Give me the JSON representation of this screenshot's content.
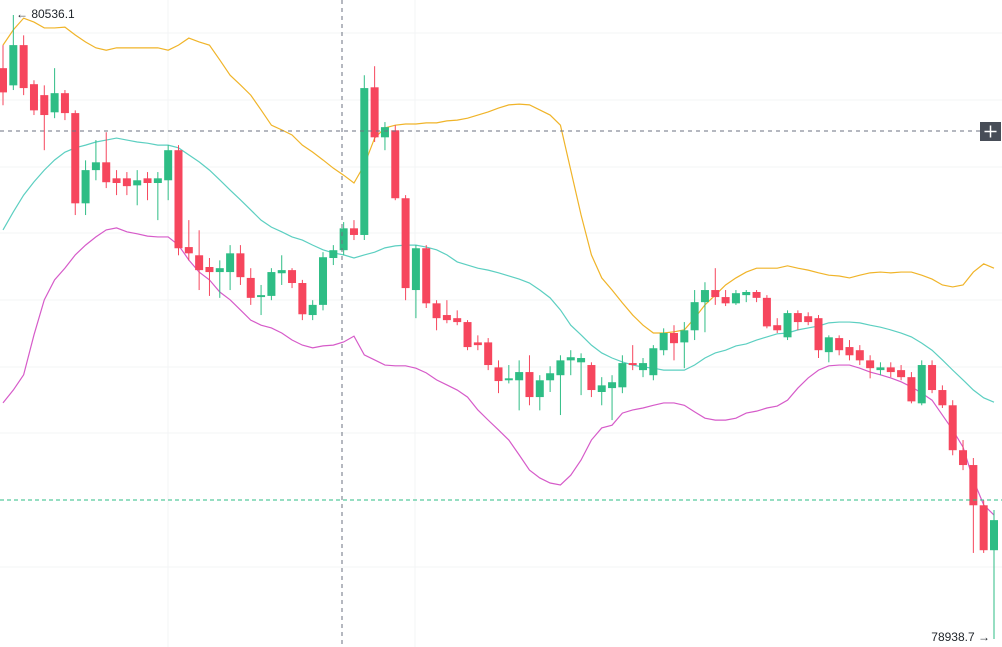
{
  "chart_data": {
    "type": "candlestick",
    "max_label": "← 80536.1",
    "min_label": "78938.7 →",
    "ylim": [
      78918.2,
      80574.5
    ],
    "up_color": "#2ebd85",
    "down_color": "#f6465d",
    "open": [
      80400,
      80356,
      80459,
      80359,
      80331,
      80287,
      80336,
      80285,
      80054,
      80139,
      80159,
      80118,
      80118,
      80100,
      80118,
      80106,
      80113,
      80190,
      79942,
      79921,
      79891,
      79878,
      79878,
      79926,
      79863,
      79814,
      79817,
      79875,
      79883,
      79850,
      79768,
      79794,
      79914,
      79934,
      79990,
      79973,
      80351,
      80223,
      80241,
      80067,
      79832,
      79939,
      79798,
      79768,
      79760,
      79750,
      79698,
      79698,
      79634,
      79601,
      79601,
      79622,
      79558,
      79601,
      79614,
      79652,
      79647,
      79640,
      79571,
      79581,
      79583,
      79645,
      79627,
      79614,
      79678,
      79722,
      79698,
      79729,
      79801,
      79832,
      79814,
      79798,
      79819,
      79827,
      79812,
      79742,
      79711,
      79773,
      79765,
      79760,
      79673,
      79709,
      79686,
      79678,
      79652,
      79627,
      79634,
      79627,
      79609,
      79542,
      79640,
      79576,
      79537,
      79422,
      79384,
      79281,
      79166
    ],
    "high": [
      80459,
      80536.1,
      80484,
      80369,
      80356,
      80400,
      80344,
      80292,
      80164,
      80216,
      80236,
      80139,
      80134,
      80139,
      80134,
      80134,
      80203,
      80203,
      80011,
      79985,
      79914,
      79908,
      79947,
      79947,
      79888,
      79845,
      79888,
      79921,
      79888,
      79858,
      79806,
      79929,
      79947,
      80006,
      80011,
      80382,
      80405,
      80262,
      80254,
      80075,
      79947,
      79947,
      79806,
      79806,
      79780,
      79755,
      79716,
      79709,
      79652,
      79640,
      79652,
      79665,
      79614,
      79637,
      79665,
      79678,
      79670,
      79647,
      79609,
      79614,
      79665,
      79691,
      79658,
      79691,
      79734,
      79742,
      79750,
      79832,
      79852,
      79888,
      79832,
      79832,
      79832,
      79832,
      79819,
      79760,
      79780,
      79780,
      79775,
      79768,
      79716,
      79716,
      79704,
      79691,
      79665,
      79647,
      79647,
      79640,
      79622,
      79652,
      79652,
      79588,
      79550,
      79448,
      79402,
      79294,
      79269
    ],
    "low": [
      80305,
      80344,
      80331,
      80280,
      80190,
      80272,
      80267,
      80024,
      80024,
      80113,
      80093,
      80075,
      80075,
      80049,
      80062,
      80011,
      80062,
      79921,
      79908,
      79832,
      79817,
      79812,
      79832,
      79845,
      79794,
      79768,
      79806,
      79845,
      79837,
      79755,
      79755,
      79780,
      79896,
      79921,
      79960,
      79960,
      80211,
      80190,
      80062,
      79806,
      79760,
      79786,
      79729,
      79747,
      79742,
      79678,
      79678,
      79627,
      79568,
      79593,
      79524,
      79537,
      79524,
      79571,
      79512,
      79614,
      79563,
      79558,
      79537,
      79499,
      79568,
      79627,
      79609,
      79601,
      79665,
      79652,
      79632,
      79704,
      79724,
      79794,
      79791,
      79794,
      79801,
      79801,
      79734,
      79722,
      79704,
      79729,
      79742,
      79658,
      79647,
      79665,
      79652,
      79640,
      79606,
      79614,
      79609,
      79601,
      79542,
      79537,
      79568,
      79530,
      79409,
      79371,
      79159,
      79159,
      78938.7
    ],
    "close": [
      80338,
      80459,
      80349,
      80292,
      80280,
      80336,
      80285,
      80054,
      80139,
      80159,
      80108,
      80106,
      80098,
      80113,
      80106,
      80118,
      80190,
      79939,
      79926,
      79883,
      79878,
      79888,
      79926,
      79865,
      79812,
      79819,
      79878,
      79883,
      79850,
      79770,
      79794,
      79916,
      79934,
      79990,
      79973,
      80349,
      80223,
      80249,
      80067,
      79837,
      79939,
      79798,
      79760,
      79755,
      79750,
      79686,
      79691,
      79640,
      79599,
      79606,
      79622,
      79558,
      79601,
      79619,
      79652,
      79660,
      79658,
      79576,
      79588,
      79596,
      79645,
      79640,
      79645,
      79683,
      79722,
      79696,
      79729,
      79801,
      79832,
      79814,
      79798,
      79824,
      79827,
      79812,
      79739,
      79729,
      79773,
      79750,
      79750,
      79678,
      79711,
      79678,
      79665,
      79652,
      79632,
      79634,
      79622,
      79609,
      79547,
      79640,
      79576,
      79537,
      79422,
      79384,
      79281,
      79166,
      79243
    ],
    "bands": [
      {
        "color": "#f0b429",
        "values": [
          80459,
          80498,
          80528,
          80518,
          80503,
          80503,
          80505,
          80485,
          80467,
          80452,
          80446,
          80452,
          80452,
          80452,
          80452,
          80452,
          80446,
          80459,
          80477,
          80467,
          80459,
          80421,
          80382,
          80357,
          80331,
          80293,
          80254,
          80242,
          80229,
          80203,
          80185,
          80165,
          80144,
          80126,
          80106,
          80152,
          80221,
          80247,
          80254,
          80257,
          80257,
          80260,
          80260,
          80265,
          80267,
          80272,
          80280,
          80288,
          80298,
          80306,
          80308,
          80306,
          80293,
          80280,
          80254,
          80139,
          80024,
          79922,
          79863,
          79832,
          79799,
          79768,
          79742,
          79722,
          79722,
          79725,
          79730,
          79760,
          79794,
          79819,
          79845,
          79863,
          79878,
          79888,
          79888,
          79888,
          79894,
          79888,
          79883,
          79876,
          79870,
          79868,
          79863,
          79870,
          79876,
          79878,
          79876,
          79878,
          79878,
          79870,
          79860,
          79845,
          79840,
          79845,
          79878,
          79899,
          79888
        ]
      },
      {
        "color": "#5ccfc1",
        "values": [
          79986,
          80032,
          80075,
          80109,
          80139,
          80165,
          80185,
          80196,
          80203,
          80211,
          80216,
          80221,
          80216,
          80211,
          80208,
          80203,
          80203,
          80196,
          80178,
          80160,
          80139,
          80114,
          80088,
          80063,
          80037,
          80011,
          79993,
          79981,
          79968,
          79960,
          79947,
          79935,
          79927,
          79922,
          79914,
          79922,
          79929,
          79940,
          79945,
          79947,
          79947,
          79942,
          79935,
          79922,
          79904,
          79896,
          79888,
          79883,
          79876,
          79868,
          79860,
          79850,
          79832,
          79812,
          79781,
          79742,
          79717,
          79691,
          79671,
          79658,
          79648,
          79640,
          79635,
          79632,
          79627,
          79627,
          79627,
          79640,
          79658,
          79671,
          79678,
          79689,
          79694,
          79704,
          79712,
          79720,
          79722,
          79730,
          79735,
          79740,
          79748,
          79750,
          79750,
          79748,
          79742,
          79737,
          79730,
          79722,
          79712,
          79696,
          79678,
          79653,
          79627,
          79602,
          79576,
          79556,
          79545
        ]
      },
      {
        "color": "#d65bc9",
        "values": [
          79543,
          79576,
          79615,
          79717,
          79807,
          79858,
          79888,
          79922,
          79947,
          79968,
          79986,
          79991,
          79981,
          79976,
          79970,
          79968,
          79968,
          79947,
          79909,
          79878,
          79858,
          79827,
          79807,
          79781,
          79755,
          79742,
          79735,
          79722,
          79704,
          79691,
          79684,
          79689,
          79691,
          79699,
          79714,
          79666,
          79653,
          79640,
          79638,
          79638,
          79632,
          79620,
          79602,
          79589,
          79576,
          79558,
          79525,
          79499,
          79474,
          79448,
          79410,
          79371,
          79351,
          79338,
          79333,
          79358,
          79397,
          79448,
          79479,
          79486,
          79517,
          79525,
          79530,
          79537,
          79543,
          79543,
          79537,
          79520,
          79504,
          79499,
          79499,
          79504,
          79517,
          79522,
          79530,
          79535,
          79550,
          79581,
          79607,
          79627,
          79638,
          79640,
          79640,
          79632,
          79622,
          79615,
          79607,
          79597,
          79584,
          79568,
          79550,
          79512,
          79474,
          79430,
          79346,
          79282,
          79256
        ]
      }
    ]
  }
}
